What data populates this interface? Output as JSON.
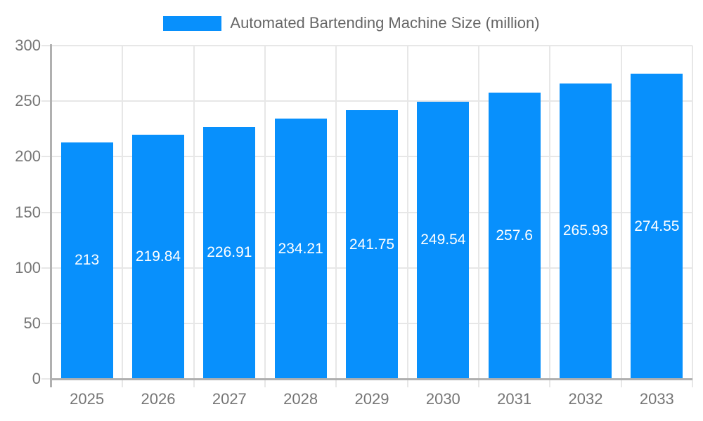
{
  "legend": {
    "label": "Automated Bartending Machine Size (million)",
    "swatch_color": "#0890fc"
  },
  "chart_data": {
    "type": "bar",
    "title": "Automated Bartending Machine Size (million)",
    "categories": [
      "2025",
      "2026",
      "2027",
      "2028",
      "2029",
      "2030",
      "2031",
      "2032",
      "2033"
    ],
    "series": [
      {
        "name": "Automated Bartending Machine Size (million)",
        "values": [
          213,
          219.84,
          226.91,
          234.21,
          241.75,
          249.54,
          257.6,
          265.93,
          274.55
        ]
      }
    ],
    "value_labels": [
      "213",
      "219.84",
      "226.91",
      "234.21",
      "241.75",
      "249.54",
      "257.6",
      "265.93",
      "274.55"
    ],
    "xlabel": "",
    "ylabel": "",
    "ylim": [
      0,
      300
    ],
    "ytick_step": 50,
    "ytick_labels": [
      "0",
      "50",
      "100",
      "150",
      "200",
      "250",
      "300"
    ],
    "grid": true,
    "legend_position": "top",
    "colors": {
      "bar": "#0890fc",
      "value_label": "#ffffff",
      "axis": "#b0b0b0",
      "gridline": "#e7e7e7",
      "tick_label": "#757575",
      "legend_text": "#666666",
      "background": "#ffffff"
    }
  }
}
